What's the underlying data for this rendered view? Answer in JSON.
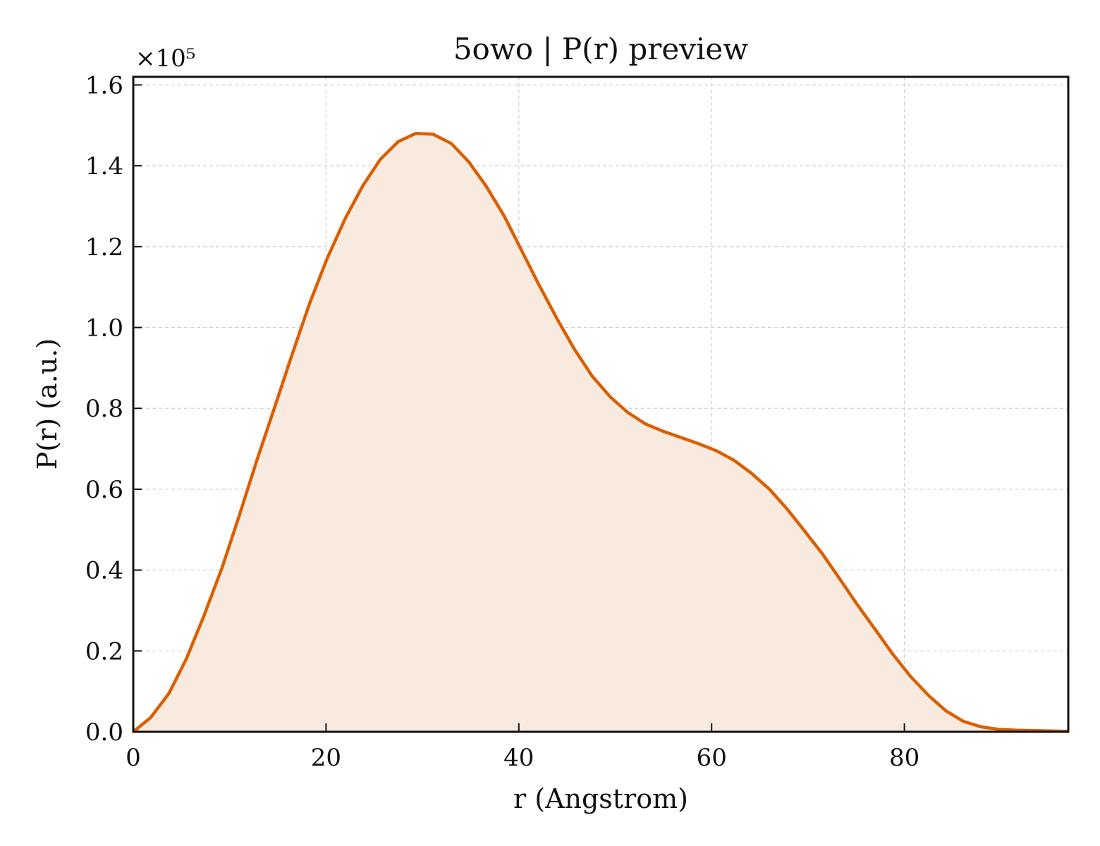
{
  "chart_data": {
    "type": "area",
    "title": "5owo | P(r) preview",
    "xlabel": "r (Angstrom)",
    "ylabel": "P(r) (a.u.)",
    "y_offset_label": "×10⁵",
    "xlim": [
      0,
      97
    ],
    "ylim": [
      0,
      1.62
    ],
    "xticks": [
      0,
      20,
      40,
      60,
      80
    ],
    "xtick_labels": [
      "0",
      "20",
      "40",
      "60",
      "80"
    ],
    "yticks": [
      0.0,
      0.2,
      0.4,
      0.6,
      0.8,
      1.0,
      1.2,
      1.4,
      1.6
    ],
    "ytick_labels": [
      "0.0",
      "0.2",
      "0.4",
      "0.6",
      "0.8",
      "1.0",
      "1.2",
      "1.4",
      "1.6"
    ],
    "grid": true,
    "legend": "none",
    "colors": {
      "line": "#d95f02",
      "fill": "#f8eadf"
    },
    "series": [
      {
        "x": [
          0,
          1.8,
          3.7,
          5.5,
          7.3,
          9.2,
          11.0,
          12.8,
          14.7,
          16.5,
          18.3,
          20.1,
          22.0,
          23.8,
          25.6,
          27.5,
          29.3,
          31.1,
          33.0,
          34.8,
          36.6,
          38.5,
          40.3,
          42.1,
          44.0,
          45.8,
          47.6,
          49.5,
          51.3,
          53.1,
          55.0,
          56.8,
          58.6,
          60.5,
          62.3,
          64.1,
          66.0,
          67.8,
          69.6,
          71.5,
          73.3,
          75.1,
          77.0,
          78.8,
          80.6,
          82.5,
          84.3,
          86.1,
          88.0,
          89.8,
          91.6,
          93.5,
          95.3,
          97.0
        ],
        "y": [
          0.0,
          0.035,
          0.095,
          0.18,
          0.285,
          0.405,
          0.535,
          0.67,
          0.805,
          0.935,
          1.06,
          1.17,
          1.27,
          1.35,
          1.415,
          1.46,
          1.48,
          1.478,
          1.455,
          1.41,
          1.35,
          1.275,
          1.19,
          1.105,
          1.02,
          0.945,
          0.88,
          0.828,
          0.79,
          0.762,
          0.743,
          0.728,
          0.713,
          0.695,
          0.672,
          0.64,
          0.6,
          0.552,
          0.498,
          0.44,
          0.378,
          0.315,
          0.252,
          0.192,
          0.138,
          0.09,
          0.052,
          0.026,
          0.012,
          0.006,
          0.004,
          0.003,
          0.002,
          0.001
        ]
      }
    ]
  }
}
